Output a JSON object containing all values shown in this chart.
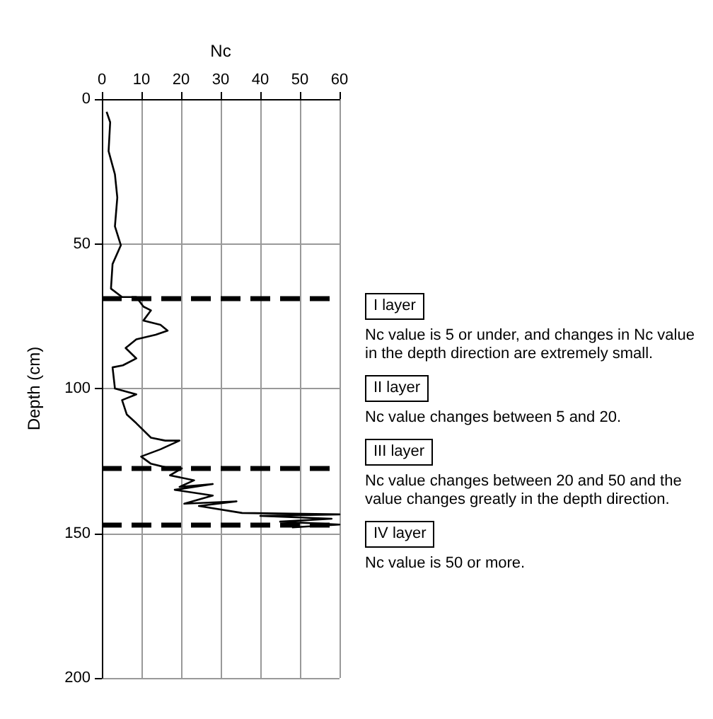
{
  "chart_data": {
    "type": "line",
    "xlabel": "Nc",
    "ylabel": "Depth (cm)",
    "xlim": [
      0,
      60
    ],
    "xticks": [
      0,
      10,
      20,
      30,
      40,
      50,
      60
    ],
    "ylim": [
      200,
      0
    ],
    "yticks": [
      0,
      50,
      100,
      150,
      200
    ],
    "grid": true,
    "marker": "none",
    "line_style": "solid",
    "series": [
      {
        "color": "#000000",
        "x": [
          1.2,
          2.1,
          1.7,
          3.3,
          3.9,
          3.3,
          4.8,
          2.7,
          2.3,
          5.1,
          8.7,
          10.5,
          12.4,
          10.5,
          14.8,
          16.6,
          13.6,
          8.7,
          6,
          8.7,
          5.3,
          2.7,
          3.3,
          8.7,
          5.1,
          6.3,
          8.7,
          12.4,
          16,
          19.6,
          14.8,
          9.9,
          12.4,
          17.2,
          20.2,
          17.2,
          23.3,
          19.6,
          28,
          18.4,
          28,
          20.8,
          34,
          24.5,
          35.4,
          60,
          40,
          58,
          45,
          60,
          48
        ],
        "values": [
          4.4,
          8,
          18,
          26,
          34,
          44,
          50.5,
          57,
          65.5,
          68.4,
          68.4,
          71.7,
          73,
          76.5,
          78,
          80,
          81.4,
          83,
          86,
          89.6,
          92,
          92.7,
          100,
          102,
          104,
          109,
          112,
          117,
          118,
          118,
          121,
          123.5,
          126,
          127.6,
          127.6,
          130,
          131.7,
          134,
          133,
          135,
          137,
          139.8,
          139,
          140.6,
          143,
          143.5,
          144,
          145,
          146,
          147,
          148
        ]
      }
    ],
    "ref_lines": [
      {
        "axis": "y",
        "value": 69,
        "color": "#000000",
        "line_style": "dashed"
      },
      {
        "axis": "y",
        "value": 127.5,
        "color": "#000000",
        "line_style": "dashed"
      },
      {
        "axis": "y",
        "value": 147,
        "color": "#000000",
        "line_style": "dashed"
      }
    ],
    "annotations": [
      "I layer",
      "Nc value is 5 or under, and changes in Nc value in the depth direction are extremely small.",
      "II layer",
      "Nc value changes between 5 and 20.",
      "III layer",
      "Nc value changes between 20 and 50 and the value changes greatly in the depth direction.",
      "IV layer",
      "Nc value is 50 or more."
    ]
  }
}
